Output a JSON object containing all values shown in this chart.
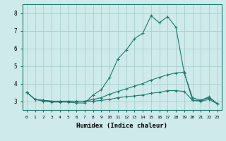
{
  "xlabel": "Humidex (Indice chaleur)",
  "bg_color": "#ceeaea",
  "grid_color": "#aacfcf",
  "line_color": "#1a7a6e",
  "xlim": [
    -0.5,
    23.5
  ],
  "ylim": [
    2.5,
    8.5
  ],
  "yticks": [
    3,
    4,
    5,
    6,
    7,
    8
  ],
  "xticks": [
    0,
    1,
    2,
    3,
    4,
    5,
    6,
    7,
    8,
    9,
    10,
    11,
    12,
    13,
    14,
    15,
    16,
    17,
    18,
    19,
    20,
    21,
    22,
    23
  ],
  "series": [
    {
      "x": [
        0,
        1,
        2,
        3,
        4,
        5,
        6,
        7,
        8,
        9,
        10,
        11,
        12,
        13,
        14,
        15,
        16,
        17,
        18,
        19,
        20,
        21,
        22,
        23
      ],
      "y": [
        3.5,
        3.1,
        3.0,
        2.95,
        2.95,
        2.95,
        2.9,
        2.9,
        3.35,
        3.65,
        4.35,
        5.4,
        5.9,
        6.55,
        6.85,
        7.85,
        7.45,
        7.8,
        7.2,
        4.6,
        3.2,
        3.05,
        3.25,
        2.85
      ]
    },
    {
      "x": [
        0,
        1,
        2,
        3,
        4,
        5,
        6,
        7,
        8,
        9,
        10,
        11,
        12,
        13,
        14,
        15,
        16,
        17,
        18,
        19,
        20,
        21,
        22,
        23
      ],
      "y": [
        3.5,
        3.1,
        3.05,
        3.0,
        3.0,
        3.0,
        3.0,
        3.0,
        3.1,
        3.2,
        3.4,
        3.55,
        3.7,
        3.85,
        4.0,
        4.2,
        4.35,
        4.5,
        4.6,
        4.65,
        3.05,
        3.05,
        3.2,
        2.85
      ]
    },
    {
      "x": [
        0,
        1,
        2,
        3,
        4,
        5,
        6,
        7,
        8,
        9,
        10,
        11,
        12,
        13,
        14,
        15,
        16,
        17,
        18,
        19,
        20,
        21,
        22,
        23
      ],
      "y": [
        3.5,
        3.1,
        3.05,
        3.0,
        3.0,
        3.0,
        3.0,
        3.0,
        3.0,
        3.05,
        3.1,
        3.2,
        3.25,
        3.3,
        3.35,
        3.45,
        3.5,
        3.6,
        3.6,
        3.55,
        3.05,
        3.0,
        3.1,
        2.85
      ]
    }
  ]
}
